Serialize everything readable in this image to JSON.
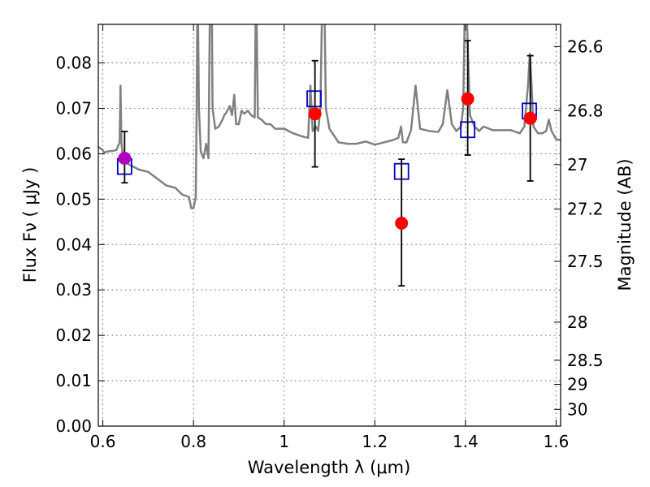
{
  "chart_data": {
    "type": "scatter",
    "xlabel": "Wavelength  λ (μm)",
    "ylabel": "Flux  Fν  ( μJy )",
    "ylabel_right": "Magnitude (AB)",
    "xlim": [
      0.59,
      1.61
    ],
    "ylim": [
      0.0,
      0.0885
    ],
    "grid": true,
    "x_ticks": [
      0.6,
      0.8,
      1.0,
      1.2,
      1.4,
      1.6
    ],
    "x_tick_labels": [
      "0.6",
      "0.8",
      "1",
      "1.2",
      "1.4",
      "1.6"
    ],
    "y_ticks": [
      0.0,
      0.01,
      0.02,
      0.03,
      0.04,
      0.05,
      0.06,
      0.07,
      0.08
    ],
    "y_tick_labels": [
      "0.00",
      "0.01",
      "0.02",
      "0.03",
      "0.04",
      "0.05",
      "0.06",
      "0.07",
      "0.08"
    ],
    "right_ticks": [
      {
        "flux": 0.0836,
        "label": "26.6"
      },
      {
        "flux": 0.0695,
        "label": "26.8"
      },
      {
        "flux": 0.0576,
        "label": "27"
      },
      {
        "flux": 0.0478,
        "label": "27.2"
      },
      {
        "flux": 0.0363,
        "label": "27.5"
      },
      {
        "flux": 0.0229,
        "label": "28"
      },
      {
        "flux": 0.0145,
        "label": "28.5"
      },
      {
        "flux": 0.0092,
        "label": "29"
      },
      {
        "flux": 0.0037,
        "label": "30"
      }
    ],
    "series": [
      {
        "kind": "spectrum",
        "color": "#808080",
        "points": [
          [
            0.59,
            0.0615
          ],
          [
            0.6,
            0.0608
          ],
          [
            0.603,
            0.0602
          ],
          [
            0.61,
            0.0605
          ],
          [
            0.62,
            0.0606
          ],
          [
            0.63,
            0.0608
          ],
          [
            0.637,
            0.0625
          ],
          [
            0.639,
            0.075
          ],
          [
            0.641,
            0.0625
          ],
          [
            0.645,
            0.0585
          ],
          [
            0.66,
            0.0575
          ],
          [
            0.68,
            0.0565
          ],
          [
            0.7,
            0.056
          ],
          [
            0.72,
            0.0545
          ],
          [
            0.74,
            0.053
          ],
          [
            0.76,
            0.0525
          ],
          [
            0.775,
            0.051
          ],
          [
            0.79,
            0.0505
          ],
          [
            0.795,
            0.048
          ],
          [
            0.8,
            0.048
          ],
          [
            0.805,
            0.0505
          ],
          [
            0.807,
            0.07
          ],
          [
            0.809,
            0.1
          ],
          [
            0.812,
            0.07
          ],
          [
            0.816,
            0.0605
          ],
          [
            0.822,
            0.059
          ],
          [
            0.828,
            0.0622
          ],
          [
            0.833,
            0.059
          ],
          [
            0.837,
            0.1
          ],
          [
            0.84,
            0.1
          ],
          [
            0.842,
            0.07
          ],
          [
            0.848,
            0.0655
          ],
          [
            0.856,
            0.066
          ],
          [
            0.864,
            0.0675
          ],
          [
            0.868,
            0.0685
          ],
          [
            0.872,
            0.069
          ],
          [
            0.88,
            0.0705
          ],
          [
            0.885,
            0.0685
          ],
          [
            0.89,
            0.073
          ],
          [
            0.894,
            0.0665
          ],
          [
            0.9,
            0.0665
          ],
          [
            0.906,
            0.0695
          ],
          [
            0.912,
            0.0688
          ],
          [
            0.92,
            0.0695
          ],
          [
            0.927,
            0.0685
          ],
          [
            0.935,
            0.068
          ],
          [
            0.938,
            0.1
          ],
          [
            0.942,
            0.068
          ],
          [
            0.95,
            0.0675
          ],
          [
            0.96,
            0.0665
          ],
          [
            0.97,
            0.0665
          ],
          [
            0.98,
            0.0655
          ],
          [
            1.0,
            0.0655
          ],
          [
            1.02,
            0.0645
          ],
          [
            1.04,
            0.0638
          ],
          [
            1.053,
            0.0635
          ],
          [
            1.058,
            0.075
          ],
          [
            1.063,
            0.065
          ],
          [
            1.07,
            0.066
          ],
          [
            1.075,
            0.065
          ],
          [
            1.08,
            0.07
          ],
          [
            1.085,
            0.1
          ],
          [
            1.088,
            0.1
          ],
          [
            1.092,
            0.07
          ],
          [
            1.1,
            0.0655
          ],
          [
            1.12,
            0.0625
          ],
          [
            1.14,
            0.0622
          ],
          [
            1.16,
            0.0622
          ],
          [
            1.18,
            0.0627
          ],
          [
            1.2,
            0.062
          ],
          [
            1.22,
            0.0625
          ],
          [
            1.24,
            0.063
          ],
          [
            1.252,
            0.0635
          ],
          [
            1.258,
            0.066
          ],
          [
            1.262,
            0.0625
          ],
          [
            1.27,
            0.0625
          ],
          [
            1.28,
            0.0652
          ],
          [
            1.29,
            0.075
          ],
          [
            1.3,
            0.0655
          ],
          [
            1.32,
            0.065
          ],
          [
            1.34,
            0.0648
          ],
          [
            1.35,
            0.0665
          ],
          [
            1.36,
            0.074
          ],
          [
            1.37,
            0.0665
          ],
          [
            1.38,
            0.065
          ],
          [
            1.39,
            0.066
          ],
          [
            1.395,
            0.07
          ],
          [
            1.4,
            0.1
          ],
          [
            1.41,
            0.0685
          ],
          [
            1.42,
            0.066
          ],
          [
            1.43,
            0.065
          ],
          [
            1.44,
            0.066
          ],
          [
            1.46,
            0.0652
          ],
          [
            1.48,
            0.0652
          ],
          [
            1.5,
            0.0652
          ],
          [
            1.52,
            0.0645
          ],
          [
            1.53,
            0.066
          ],
          [
            1.538,
            0.075
          ],
          [
            1.542,
            0.082
          ],
          [
            1.546,
            0.075
          ],
          [
            1.55,
            0.066
          ],
          [
            1.56,
            0.0645
          ],
          [
            1.57,
            0.0645
          ],
          [
            1.578,
            0.065
          ],
          [
            1.584,
            0.0675
          ],
          [
            1.59,
            0.065
          ],
          [
            1.6,
            0.0632
          ],
          [
            1.61,
            0.063
          ]
        ]
      },
      {
        "kind": "model-squares",
        "color": "#0000cc",
        "points": [
          [
            0.648,
            0.0572
          ],
          [
            1.066,
            0.0721
          ],
          [
            1.259,
            0.0561
          ],
          [
            1.405,
            0.0653
          ],
          [
            1.541,
            0.0694
          ]
        ]
      },
      {
        "kind": "observed",
        "points": [
          {
            "x": 0.648,
            "y": 0.059,
            "err_low": 0.0054,
            "err_high": 0.0059,
            "color": "#b000c0"
          },
          {
            "x": 1.068,
            "y": 0.0688,
            "err_low": 0.0117,
            "err_high": 0.0117,
            "color": "#ff0000"
          },
          {
            "x": 1.259,
            "y": 0.0447,
            "err_low": 0.0138,
            "err_high": 0.0141,
            "color": "#ff0000"
          },
          {
            "x": 1.405,
            "y": 0.0721,
            "err_low": 0.0124,
            "err_high": 0.0128,
            "color": "#ff0000"
          },
          {
            "x": 1.543,
            "y": 0.0678,
            "err_low": 0.0138,
            "err_high": 0.0138,
            "color": "#ff0000"
          }
        ]
      }
    ]
  }
}
